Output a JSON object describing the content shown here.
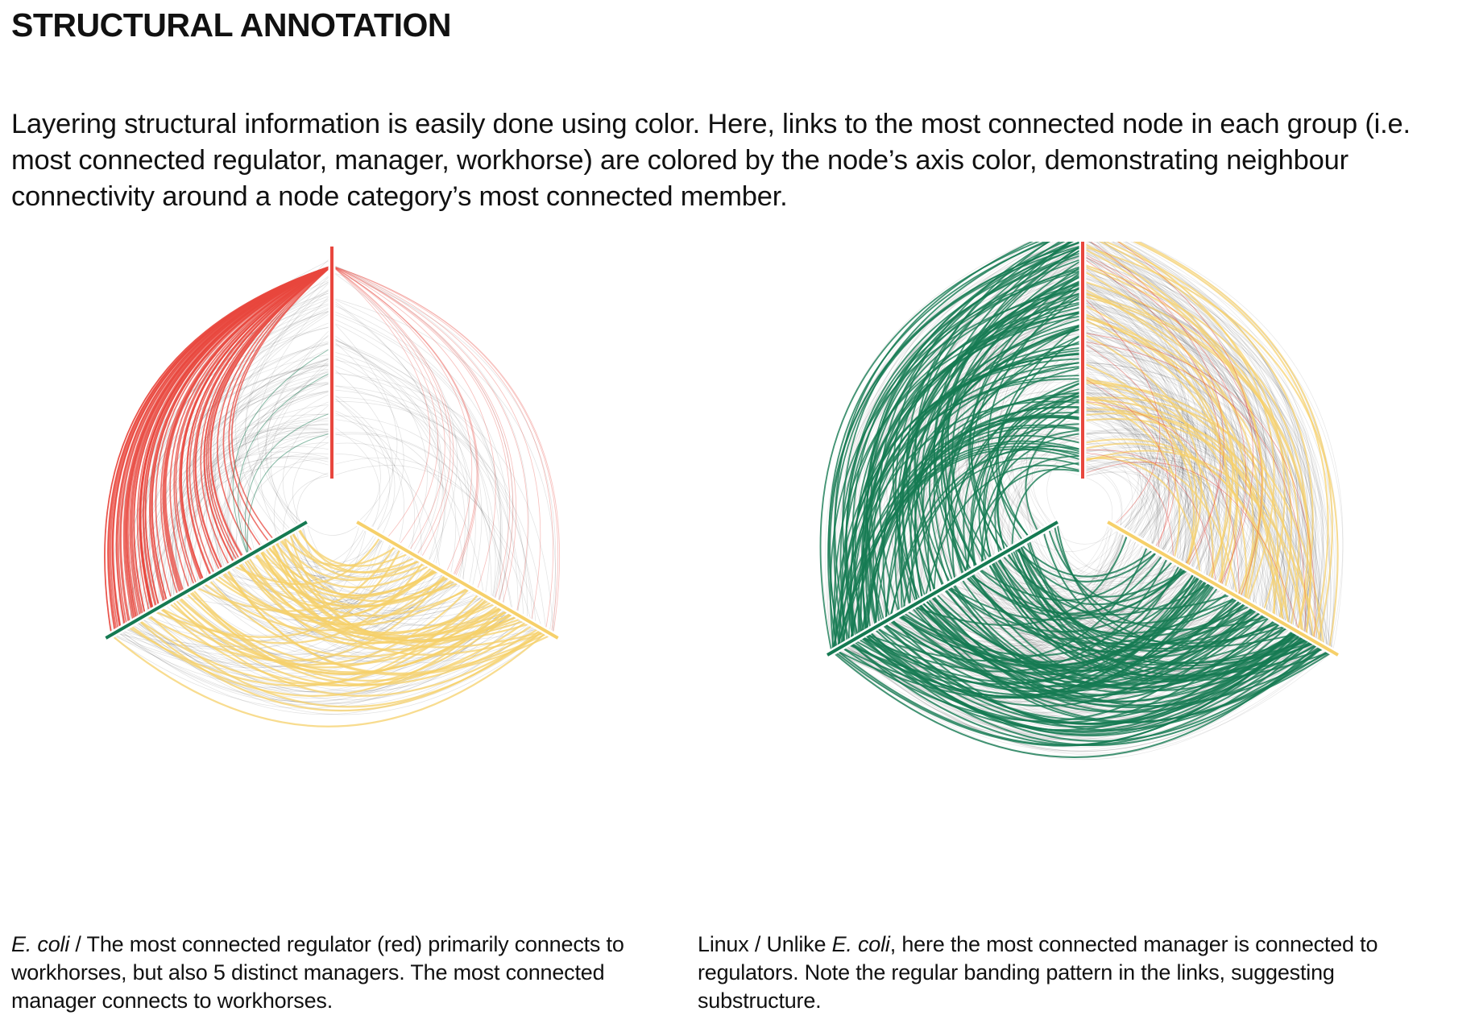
{
  "header": {
    "title": "STRUCTURAL ANNOTATION",
    "intro": "Layering structural information is easily done using color. Here, links to the most connected node in each group (i.e. most connected regulator, manager, workhorse) are colored by the node’s axis color, demonstrating neighbour connectivity around a node category’s most connected member."
  },
  "colors": {
    "regulator": "#e8473e",
    "manager": "#157a52",
    "workhorse": "#f6d06a",
    "links": "#111111"
  },
  "icons": {
    "left": "hive-plot-three-axes",
    "right": "hive-plot-three-axes"
  },
  "captions": {
    "left": {
      "species": "E. coli",
      "text": " / The most connected regulator (red) primarily connects to workhorses, but also 5 distinct managers. The most connected manager connects to workhorses."
    },
    "right": {
      "prefix": "Linux / Unlike ",
      "species": "E. coli",
      "text": ", here the most connected manager is connected to regulators. Note the regular banding pattern in the links, suggesting substructure."
    }
  }
}
